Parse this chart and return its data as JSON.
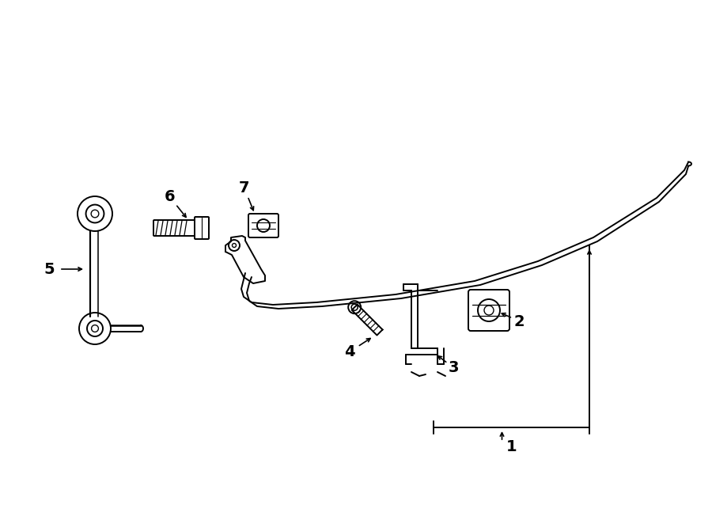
{
  "bg_color": "#ffffff",
  "line_color": "#000000",
  "lw": 1.4,
  "fig_width": 9.0,
  "fig_height": 6.62,
  "dpi": 100
}
